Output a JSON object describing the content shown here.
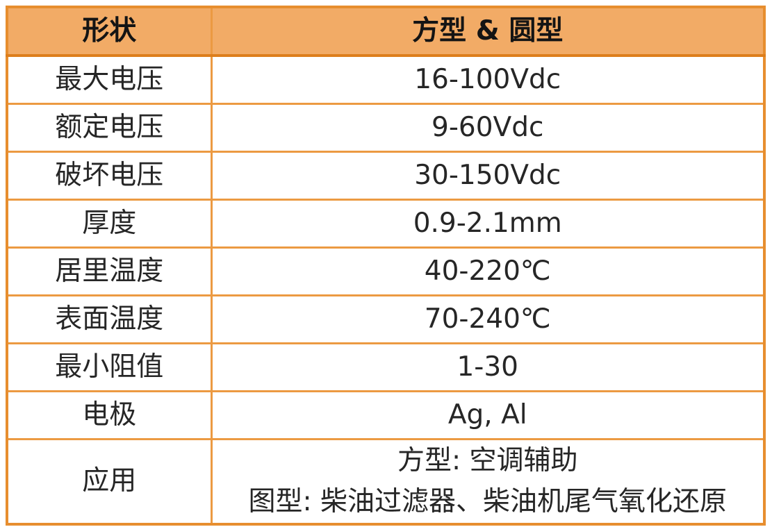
{
  "colors": {
    "header_bg": "#f2ab66",
    "grid_border": "#ec9a42",
    "outer_border": "#e78e2f",
    "header_bottom_border": "#dd7e1c",
    "text": "#1f1f1f",
    "page_bg": "#ffffff"
  },
  "table": {
    "columns": [
      {
        "header": "形状"
      },
      {
        "header": "方型 & 圆型"
      }
    ],
    "rows": [
      {
        "label": "最大电压",
        "value": "16-100Vdc"
      },
      {
        "label": "额定电压",
        "value": "9-60Vdc"
      },
      {
        "label": "破坏电压",
        "value": "30-150Vdc"
      },
      {
        "label": "厚度",
        "value": "0.9-2.1mm"
      },
      {
        "label": "居里温度",
        "value": "40-220℃"
      },
      {
        "label": "表面温度",
        "value": "70-240℃"
      },
      {
        "label": "最小阻值",
        "value": "1-30"
      },
      {
        "label": "电极",
        "value": "Ag, Al"
      }
    ],
    "application": {
      "label": "应用",
      "lines": [
        "方型: 空调辅助",
        "图型: 柴油过滤器、柴油机尾气氧化还原"
      ]
    }
  }
}
